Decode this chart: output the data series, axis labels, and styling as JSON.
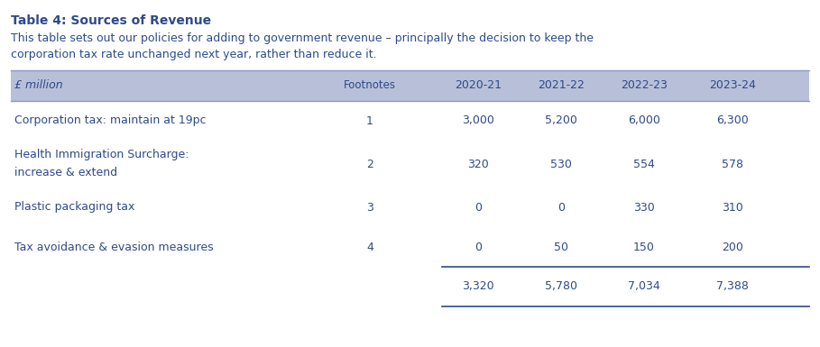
{
  "title": "Table 4: Sources of Revenue",
  "subtitle_line1": "This table sets out our policies for adding to government revenue – principally the decision to keep the",
  "subtitle_line2": "corporation tax rate unchanged next year, rather than reduce it.",
  "header_bg_color": "#b8bfd8",
  "header_text_color": "#2e4a8a",
  "header_cols": [
    "£ million",
    "Footnotes",
    "2020-21",
    "2021-22",
    "2022-23",
    "2023-24"
  ],
  "rows": [
    {
      "label": "Corporation tax: maintain at 19pc",
      "label2": "",
      "footnote": "1",
      "values": [
        "3,000",
        "5,200",
        "6,000",
        "6,300"
      ]
    },
    {
      "label": "Health Immigration Surcharge:",
      "label2": "increase & extend",
      "footnote": "2",
      "values": [
        "320",
        "530",
        "554",
        "578"
      ]
    },
    {
      "label": "Plastic packaging tax",
      "label2": "",
      "footnote": "3",
      "values": [
        "0",
        "0",
        "330",
        "310"
      ]
    },
    {
      "label": "Tax avoidance & evasion measures",
      "label2": "",
      "footnote": "4",
      "values": [
        "0",
        "50",
        "150",
        "200"
      ]
    }
  ],
  "total_row": {
    "values": [
      "3,320",
      "5,780",
      "7,034",
      "7,388"
    ]
  },
  "data_text_color": "#2e4a8a",
  "title_color": "#2e4a8a",
  "body_text_color": "#2e4a8a",
  "bg_color": "#ffffff",
  "table_border_color": "#8a9bbf",
  "figure_width": 9.09,
  "figure_height": 3.85,
  "dpi": 100
}
